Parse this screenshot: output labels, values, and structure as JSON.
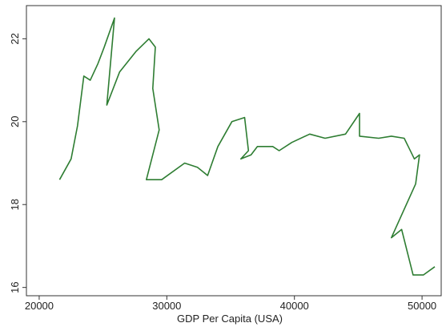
{
  "chart_data": {
    "type": "line",
    "title": "",
    "xlabel": "GDP Per Capita (USA)",
    "ylabel": "",
    "xlim": [
      19000,
      51500
    ],
    "ylim": [
      15.8,
      22.8
    ],
    "xticks": [
      20000,
      30000,
      40000,
      50000
    ],
    "yticks": [
      16,
      18,
      20,
      22
    ],
    "grid": false,
    "legend": "none",
    "series": [
      {
        "color": "#2e7d32",
        "points": [
          [
            21600,
            18.6
          ],
          [
            22500,
            19.1
          ],
          [
            23000,
            19.9
          ],
          [
            23500,
            21.1
          ],
          [
            24000,
            21.0
          ],
          [
            24600,
            21.4
          ],
          [
            25100,
            21.8
          ],
          [
            25900,
            22.5
          ],
          [
            25300,
            20.4
          ],
          [
            26300,
            21.2
          ],
          [
            27600,
            21.7
          ],
          [
            28600,
            22.0
          ],
          [
            29100,
            21.8
          ],
          [
            28900,
            20.8
          ],
          [
            29400,
            19.8
          ],
          [
            28400,
            18.6
          ],
          [
            29600,
            18.6
          ],
          [
            31400,
            19.0
          ],
          [
            32400,
            18.9
          ],
          [
            33200,
            18.7
          ],
          [
            34000,
            19.4
          ],
          [
            35100,
            20.0
          ],
          [
            36100,
            20.1
          ],
          [
            36400,
            19.3
          ],
          [
            35800,
            19.1
          ],
          [
            36600,
            19.2
          ],
          [
            37100,
            19.4
          ],
          [
            38300,
            19.4
          ],
          [
            38800,
            19.3
          ],
          [
            39800,
            19.5
          ],
          [
            41200,
            19.7
          ],
          [
            42400,
            19.6
          ],
          [
            44000,
            19.7
          ],
          [
            45100,
            20.2
          ],
          [
            45100,
            19.65
          ],
          [
            46600,
            19.6
          ],
          [
            47600,
            19.65
          ],
          [
            48600,
            19.6
          ],
          [
            49400,
            19.1
          ],
          [
            49800,
            19.2
          ],
          [
            49500,
            18.5
          ],
          [
            47600,
            17.2
          ],
          [
            48400,
            17.4
          ],
          [
            49300,
            16.3
          ],
          [
            50100,
            16.3
          ],
          [
            51000,
            16.5
          ]
        ]
      }
    ]
  }
}
